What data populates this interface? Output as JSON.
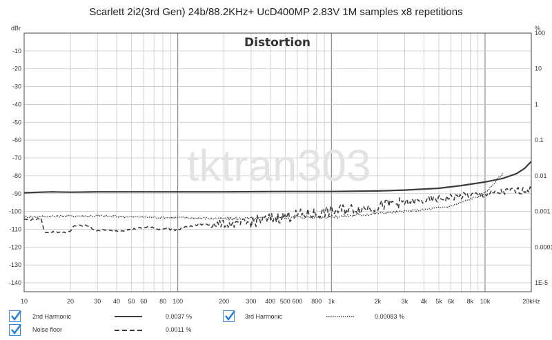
{
  "title": "Scarlett 2i2(3rd Gen) 24b/88.2KHz+ UcD400MP 2.83V 1M samples x8 repetitions",
  "plot_label": "Distortion",
  "watermark": "tktran303",
  "colors": {
    "grid": "#c8c8c8",
    "axis": "#444444",
    "series": "#3c3c3c",
    "check": "#2a7fd4",
    "watermark": "#e3e3e3"
  },
  "legend": [
    {
      "name": "2nd Harmonic",
      "value": "0.0037 %",
      "style": "solid"
    },
    {
      "name": "3rd Harmonic",
      "value": "0.00083 %",
      "style": "dotted"
    },
    {
      "name": "Noise floor",
      "value": "0.0011 %",
      "style": "dashed"
    }
  ],
  "chart_data": {
    "type": "line",
    "title": "Distortion",
    "xscale": "log",
    "xlim": [
      10,
      20000
    ],
    "ylim": [
      -145,
      0
    ],
    "y2lim_percent": [
      5.62e-05,
      100
    ],
    "ylabel": "dBr",
    "y2label": "%",
    "x_ticks": [
      "10",
      "20",
      "30",
      "40",
      "50",
      "60",
      "80",
      "100",
      "200",
      "300",
      "400",
      "500",
      "600",
      "800",
      "1k",
      "2k",
      "3k",
      "4k",
      "5k",
      "6k",
      "8k",
      "10k",
      "20kHz"
    ],
    "x_tick_values": [
      10,
      20,
      30,
      40,
      50,
      60,
      80,
      100,
      200,
      300,
      400,
      500,
      600,
      800,
      1000,
      2000,
      3000,
      4000,
      5000,
      6000,
      8000,
      10000,
      20000
    ],
    "y_ticks": [
      "-10",
      "-20",
      "-30",
      "-40",
      "-50",
      "-60",
      "-70",
      "-80",
      "-90",
      "-100",
      "-110",
      "-120",
      "-130",
      "-140"
    ],
    "y_tick_values": [
      -10,
      -20,
      -30,
      -40,
      -50,
      -60,
      -70,
      -80,
      -90,
      -100,
      -110,
      -120,
      -130,
      -140
    ],
    "y2_ticks": [
      "100",
      "10",
      "1",
      "0.1",
      "0.01",
      "0.001",
      "0.0001",
      "1E-5"
    ],
    "y2_tick_values": [
      0,
      -20,
      -40,
      -60,
      -80,
      -100,
      -120,
      -140
    ],
    "grid": true,
    "series": [
      {
        "name": "2nd Harmonic",
        "style": "solid",
        "width": 2.2,
        "x": [
          10,
          15,
          20,
          30,
          50,
          100,
          200,
          500,
          1000,
          2000,
          3000,
          5000,
          7000,
          10000,
          13000,
          16000,
          18000,
          20000
        ],
        "y": [
          -89.5,
          -89.0,
          -89.2,
          -89.0,
          -89.0,
          -89.0,
          -89.0,
          -88.8,
          -88.8,
          -88.5,
          -88.0,
          -87.0,
          -85.5,
          -83.5,
          -81.5,
          -78.8,
          -76.0,
          -72.0
        ]
      },
      {
        "name": "3rd Harmonic",
        "style": "dotted",
        "width": 1.4,
        "x": [
          10,
          20,
          30,
          50,
          100,
          200,
          300,
          500,
          700,
          1000,
          1500,
          2000,
          3000,
          4000,
          5000,
          6000,
          7000,
          8000,
          9000,
          10000,
          11000,
          12000,
          13000
        ],
        "y": [
          -103.0,
          -102.5,
          -102.5,
          -103.0,
          -103.5,
          -104.0,
          -104.0,
          -103.5,
          -103.0,
          -103.0,
          -102.0,
          -101.0,
          -100.0,
          -99.0,
          -98.0,
          -97.0,
          -95.0,
          -93.0,
          -91.5,
          -89.5,
          -86.0,
          -82.0,
          -79.0
        ]
      },
      {
        "name": "Noise floor",
        "style": "dashed",
        "width": 1.6,
        "x": [
          10,
          13,
          13.5,
          20,
          21,
          27,
          28,
          35,
          37,
          40,
          45,
          50,
          55,
          60,
          65,
          70,
          75,
          80,
          90,
          100,
          110,
          120,
          150,
          200,
          250,
          300,
          400,
          500,
          600,
          800,
          1000,
          1200,
          1500,
          2000,
          2500,
          3000,
          4000,
          5000,
          6000,
          7000,
          8000,
          10000,
          12000,
          15000,
          20000
        ],
        "y": [
          -104.5,
          -104.5,
          -111.5,
          -111.5,
          -108.0,
          -108.0,
          -110.5,
          -110.5,
          -111.0,
          -110.8,
          -110.5,
          -110.0,
          -109.5,
          -109.0,
          -108.5,
          -109.5,
          -110.0,
          -109.5,
          -110.0,
          -110.5,
          -109.0,
          -108.5,
          -107.0,
          -107.0,
          -107.5,
          -106.0,
          -104.0,
          -103.0,
          -102.0,
          -101.0,
          -100.0,
          -99.0,
          -98.5,
          -97.0,
          -95.5,
          -95.0,
          -94.0,
          -93.0,
          -92.0,
          -91.5,
          -91.0,
          -90.5,
          -89.5,
          -88.5,
          -88.0
        ]
      }
    ]
  }
}
